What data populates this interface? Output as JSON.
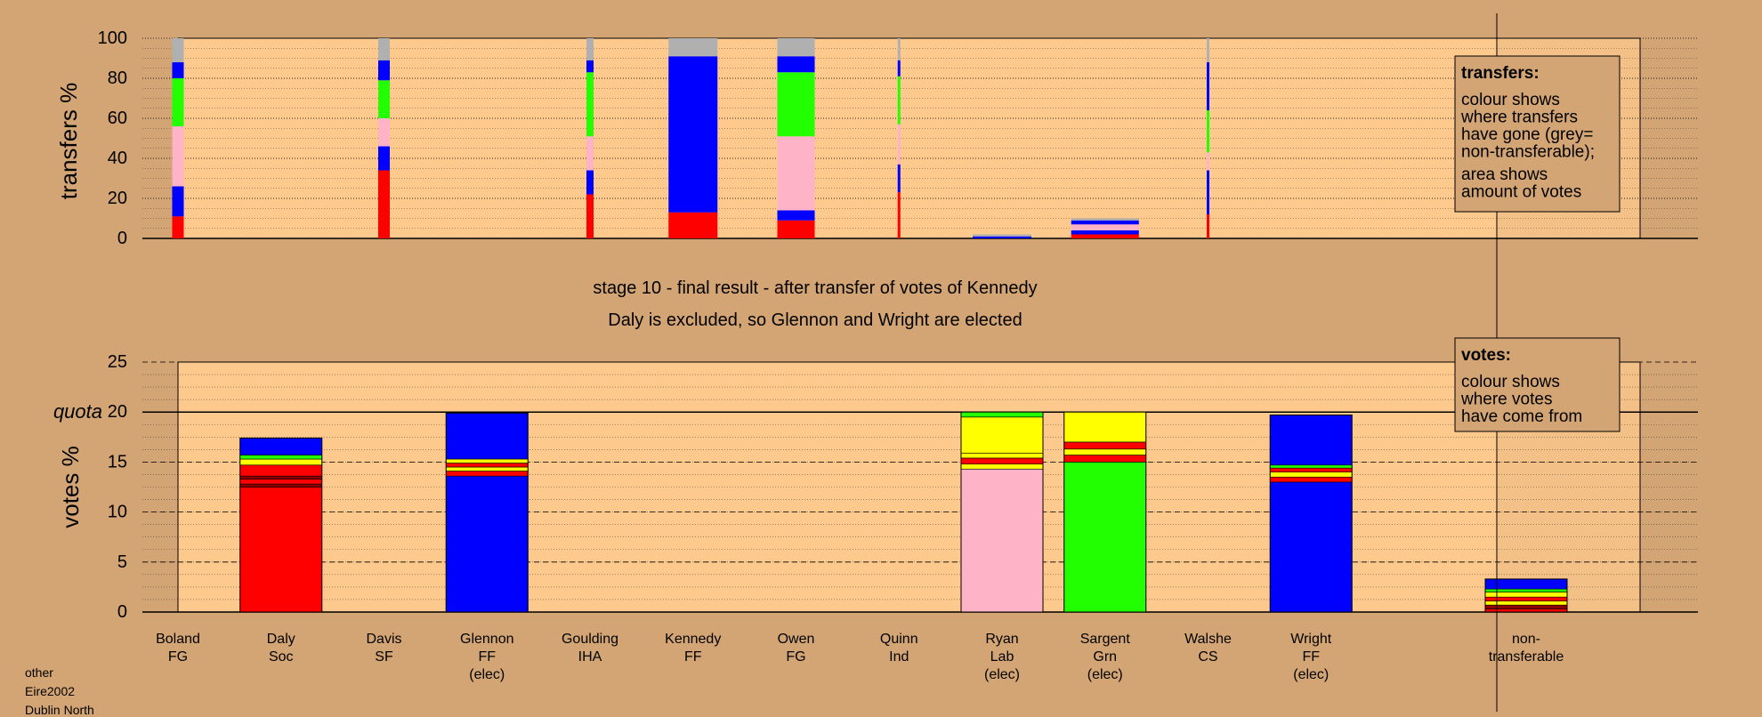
{
  "colors": {
    "background": "#d4a574",
    "plot_bg": "#fdc98d",
    "FG": "#0000ff",
    "Soc": "#ff0000",
    "SF": "#ff0000",
    "FF": "#0000ff",
    "IHA": "#00ff00",
    "Ind": "#ff0000",
    "Lab": "#ffb3c6",
    "Grn": "#22ff00",
    "CS": "#ff0000",
    "yellow": "#ffff00",
    "dark_red": "#8b0000",
    "non_transferable": "#b0b0b0"
  },
  "chart_data": [
    {
      "type": "bar",
      "id": "transfers",
      "ylabel": "transfers %",
      "ylim": [
        0,
        100
      ],
      "yticks": [
        0,
        20,
        40,
        60,
        80,
        100
      ],
      "grid": "dotted",
      "legend": {
        "title": "transfers:",
        "lines": [
          "colour shows",
          "where transfers",
          "have gone (grey=",
          "non-transferable);"
        ],
        "lines2": [
          "area shows",
          "amount of votes"
        ],
        "placement": "top-right"
      },
      "columns": [
        {
          "candidate": "Boland",
          "stacks": [
            {
              "value": 11,
              "color": "Soc"
            },
            {
              "value": 15,
              "color": "FF"
            },
            {
              "value": 30,
              "color": "Lab"
            },
            {
              "value": 24,
              "color": "Grn"
            },
            {
              "value": 8,
              "color": "FF"
            },
            {
              "value": 12,
              "color": "non_transferable"
            }
          ]
        },
        {
          "candidate": "Davis",
          "stacks": [
            {
              "value": 34,
              "color": "Soc"
            },
            {
              "value": 12,
              "color": "FF"
            },
            {
              "value": 14,
              "color": "Lab"
            },
            {
              "value": 19,
              "color": "Grn"
            },
            {
              "value": 10,
              "color": "FF"
            },
            {
              "value": 11,
              "color": "non_transferable"
            }
          ]
        },
        {
          "candidate": "Goulding",
          "stacks": [
            {
              "value": 22,
              "color": "Soc"
            },
            {
              "value": 12,
              "color": "FF"
            },
            {
              "value": 17,
              "color": "Lab"
            },
            {
              "value": 32,
              "color": "Grn"
            },
            {
              "value": 6,
              "color": "FF"
            },
            {
              "value": 11,
              "color": "non_transferable"
            }
          ]
        },
        {
          "candidate": "Kennedy",
          "stacks": [
            {
              "value": 13,
              "color": "Soc"
            },
            {
              "value": 78,
              "color": "FF"
            },
            {
              "value": 9,
              "color": "non_transferable"
            }
          ]
        },
        {
          "candidate": "Owen",
          "stacks": [
            {
              "value": 9,
              "color": "Soc"
            },
            {
              "value": 5,
              "color": "FF"
            },
            {
              "value": 37,
              "color": "Lab"
            },
            {
              "value": 32,
              "color": "Grn"
            },
            {
              "value": 8,
              "color": "FF"
            },
            {
              "value": 9,
              "color": "non_transferable"
            }
          ]
        },
        {
          "candidate": "Quinn",
          "stacks": [
            {
              "value": 23,
              "color": "Soc"
            },
            {
              "value": 14,
              "color": "FF"
            },
            {
              "value": 20,
              "color": "Lab"
            },
            {
              "value": 24,
              "color": "Grn"
            },
            {
              "value": 8,
              "color": "FF"
            },
            {
              "value": 11,
              "color": "non_transferable"
            }
          ]
        },
        {
          "candidate": "Ryan",
          "stacks": [
            {
              "value": 1,
              "color": "FF"
            },
            {
              "value": 1,
              "color": "non_transferable"
            }
          ]
        },
        {
          "candidate": "Sargent",
          "stacks": [
            {
              "value": 2,
              "color": "Soc"
            },
            {
              "value": 2,
              "color": "FF"
            },
            {
              "value": 3,
              "color": "Lab"
            },
            {
              "value": 2,
              "color": "FF"
            },
            {
              "value": 1,
              "color": "non_transferable"
            }
          ]
        },
        {
          "candidate": "Walshe",
          "stacks": [
            {
              "value": 12,
              "color": "Soc"
            },
            {
              "value": 22,
              "color": "FF"
            },
            {
              "value": 9,
              "color": "Lab"
            },
            {
              "value": 21,
              "color": "Grn"
            },
            {
              "value": 24,
              "color": "FF"
            },
            {
              "value": 12,
              "color": "non_transferable"
            }
          ]
        }
      ]
    },
    {
      "type": "bar",
      "id": "votes",
      "ylabel": "votes %",
      "ylim": [
        0,
        25
      ],
      "yticks": [
        0,
        5,
        10,
        15,
        20,
        25
      ],
      "quota": 20,
      "quota_label": "quota",
      "grid": "dotted",
      "legend": {
        "title": "votes:",
        "lines": [
          "colour shows",
          "where votes",
          "have come from"
        ],
        "placement": "top-right"
      },
      "columns": [
        {
          "candidate": "Daly",
          "stacks": [
            {
              "value": 12.5,
              "color": "Soc"
            },
            {
              "value": 0.3,
              "color": "dark_red"
            },
            {
              "value": 0.5,
              "color": "Soc"
            },
            {
              "value": 0.3,
              "color": "dark_red"
            },
            {
              "value": 1.1,
              "color": "Soc"
            },
            {
              "value": 0.6,
              "color": "yellow"
            },
            {
              "value": 0.4,
              "color": "Grn"
            },
            {
              "value": 1.7,
              "color": "FF"
            }
          ]
        },
        {
          "candidate": "Glennon",
          "stacks": [
            {
              "value": 13.6,
              "color": "FF"
            },
            {
              "value": 0.5,
              "color": "Soc"
            },
            {
              "value": 0.4,
              "color": "yellow"
            },
            {
              "value": 0.4,
              "color": "Soc"
            },
            {
              "value": 0.4,
              "color": "yellow"
            },
            {
              "value": 4.6,
              "color": "FF"
            }
          ]
        },
        {
          "candidate": "Ryan",
          "stacks": [
            {
              "value": 14.3,
              "color": "Lab"
            },
            {
              "value": 0.5,
              "color": "yellow"
            },
            {
              "value": 0.6,
              "color": "Soc"
            },
            {
              "value": 0.5,
              "color": "yellow"
            },
            {
              "value": 3.6,
              "color": "yellow"
            },
            {
              "value": 0.5,
              "color": "Grn"
            }
          ]
        },
        {
          "candidate": "Sargent",
          "stacks": [
            {
              "value": 15.0,
              "color": "Grn"
            },
            {
              "value": 0.7,
              "color": "Soc"
            },
            {
              "value": 0.6,
              "color": "yellow"
            },
            {
              "value": 0.7,
              "color": "Soc"
            },
            {
              "value": 3.0,
              "color": "yellow"
            }
          ]
        },
        {
          "candidate": "Wright",
          "stacks": [
            {
              "value": 13.0,
              "color": "FF"
            },
            {
              "value": 0.5,
              "color": "Soc"
            },
            {
              "value": 0.5,
              "color": "yellow"
            },
            {
              "value": 0.4,
              "color": "Soc"
            },
            {
              "value": 0.3,
              "color": "Grn"
            },
            {
              "value": 5.0,
              "color": "FF"
            }
          ]
        },
        {
          "candidate": "non-transferable",
          "stacks": [
            {
              "value": 0.3,
              "color": "Soc"
            },
            {
              "value": 0.4,
              "color": "dark_red"
            },
            {
              "value": 0.4,
              "color": "yellow"
            },
            {
              "value": 0.4,
              "color": "Soc"
            },
            {
              "value": 0.5,
              "color": "yellow"
            },
            {
              "value": 0.3,
              "color": "Grn"
            },
            {
              "value": 1.0,
              "color": "FF"
            }
          ]
        }
      ]
    }
  ],
  "candidates": [
    {
      "name": "Boland",
      "party": "FG",
      "status": ""
    },
    {
      "name": "Daly",
      "party": "Soc",
      "status": ""
    },
    {
      "name": "Davis",
      "party": "SF",
      "status": ""
    },
    {
      "name": "Glennon",
      "party": "FF",
      "status": "(elec)"
    },
    {
      "name": "Goulding",
      "party": "IHA",
      "status": ""
    },
    {
      "name": "Kennedy",
      "party": "FF",
      "status": ""
    },
    {
      "name": "Owen",
      "party": "FG",
      "status": ""
    },
    {
      "name": "Quinn",
      "party": "Ind",
      "status": ""
    },
    {
      "name": "Ryan",
      "party": "Lab",
      "status": "(elec)"
    },
    {
      "name": "Sargent",
      "party": "Grn",
      "status": "(elec)"
    },
    {
      "name": "Walshe",
      "party": "CS",
      "status": ""
    },
    {
      "name": "Wright",
      "party": "FF",
      "status": "(elec)"
    }
  ],
  "non_transferable_label": [
    "non-",
    "transferable"
  ],
  "stage_title": "stage 10 - final result - after transfer of votes of Kennedy",
  "stage_subtitle": "Daly is excluded, so Glennon and Wright are elected",
  "footer": {
    "line1": "other",
    "line2": "Eire2002",
    "line3": "Dublin North"
  }
}
